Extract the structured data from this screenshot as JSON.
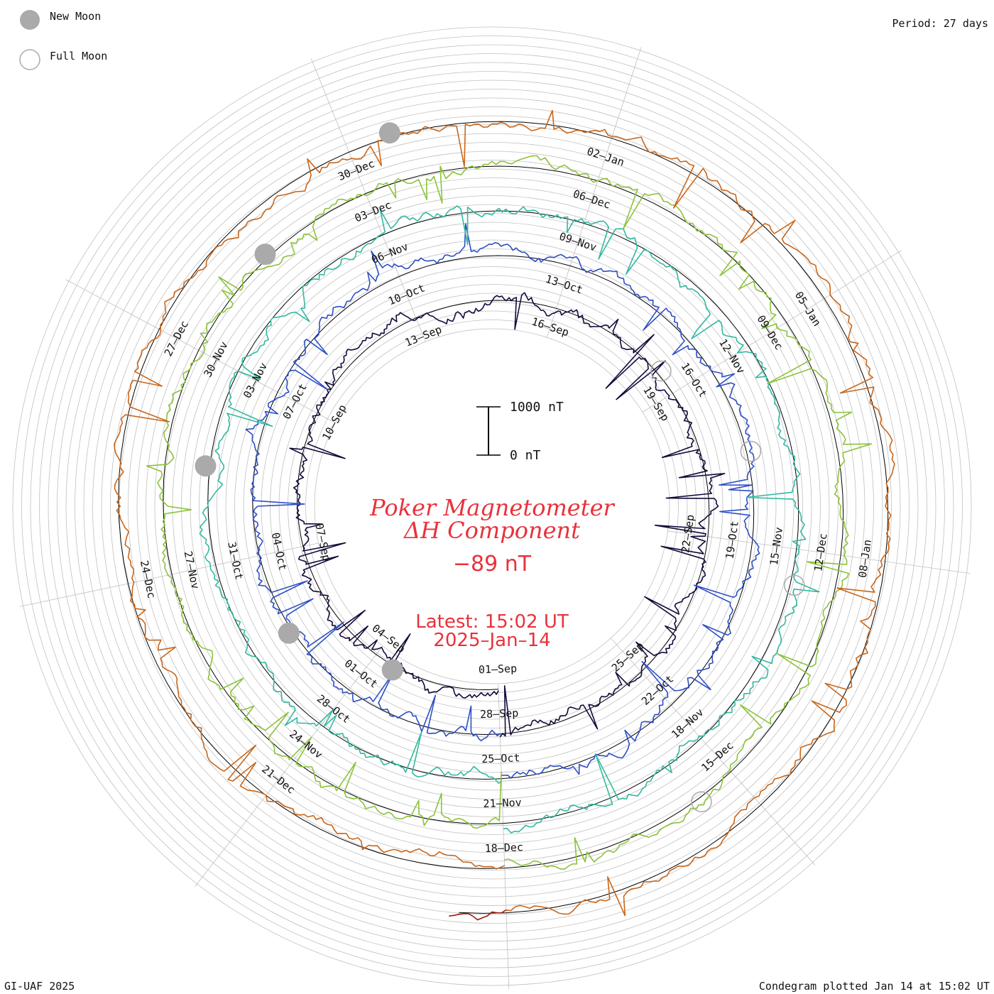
{
  "legend": {
    "new_moon": "New Moon",
    "full_moon": "Full Moon"
  },
  "period_label": "Period: 27 days",
  "footer": {
    "credit": "GI-UAF 2025",
    "plotted": "Condegram plotted Jan 14 at 15:02 UT"
  },
  "title": {
    "line1": "Poker Magnetometer",
    "line2": "ΔH Component"
  },
  "current_value": "−89 nT",
  "latest": {
    "time": "Latest: 15:02 UT",
    "date": "2025–Jan–14"
  },
  "colors": {
    "grid": "#c0c0c0",
    "baseline": "#000000",
    "title_red": "#e8323c",
    "moon_gray": "#aaaaaa"
  },
  "chart_data": {
    "type": "line",
    "subtype": "spiral condegram (polar time series)",
    "title": "Poker Magnetometer ΔH Component",
    "period_days": 27,
    "scale_bar": {
      "top_label": "1000 nT",
      "bottom_label": "0 nT",
      "span_nT": 1000
    },
    "start_date": "2024-09-01",
    "end_date": "2025-01-14",
    "series_colors": [
      "#150a3c",
      "#2a1d8c",
      "#2f4fc4",
      "#3096c8",
      "#33b8a0",
      "#47bd57",
      "#8cc23a",
      "#c39a19",
      "#c9661a",
      "#b83a15",
      "#a11a0f"
    ],
    "date_labels": [
      "01–Sep",
      "04–Sep",
      "07–Sep",
      "10–Sep",
      "13–Sep",
      "16–Sep",
      "19–Sep",
      "22–Sep",
      "25–Sep",
      "28–Sep",
      "01–Oct",
      "04–Oct",
      "07–Oct",
      "10–Oct",
      "13–Oct",
      "16–Oct",
      "19–Oct",
      "22–Oct",
      "25–Oct",
      "28–Oct",
      "31–Oct",
      "03–Nov",
      "06–Nov",
      "09–Nov",
      "12–Nov",
      "15–Nov",
      "18–Nov",
      "21–Nov",
      "24–Nov",
      "27–Nov",
      "30–Nov",
      "03–Dec",
      "06–Dec",
      "09–Dec",
      "12–Dec",
      "15–Dec",
      "18–Dec",
      "21–Dec",
      "24–Dec",
      "27–Dec",
      "30–Dec",
      "02–Jan",
      "05–Jan",
      "08–Jan"
    ],
    "new_moons": [
      "2024-09-03",
      "2024-10-02",
      "2024-11-01",
      "2024-12-01",
      "2024-12-30"
    ],
    "full_moons": [
      "2024-09-18",
      "2024-10-17",
      "2024-11-15",
      "2024-12-15"
    ]
  }
}
